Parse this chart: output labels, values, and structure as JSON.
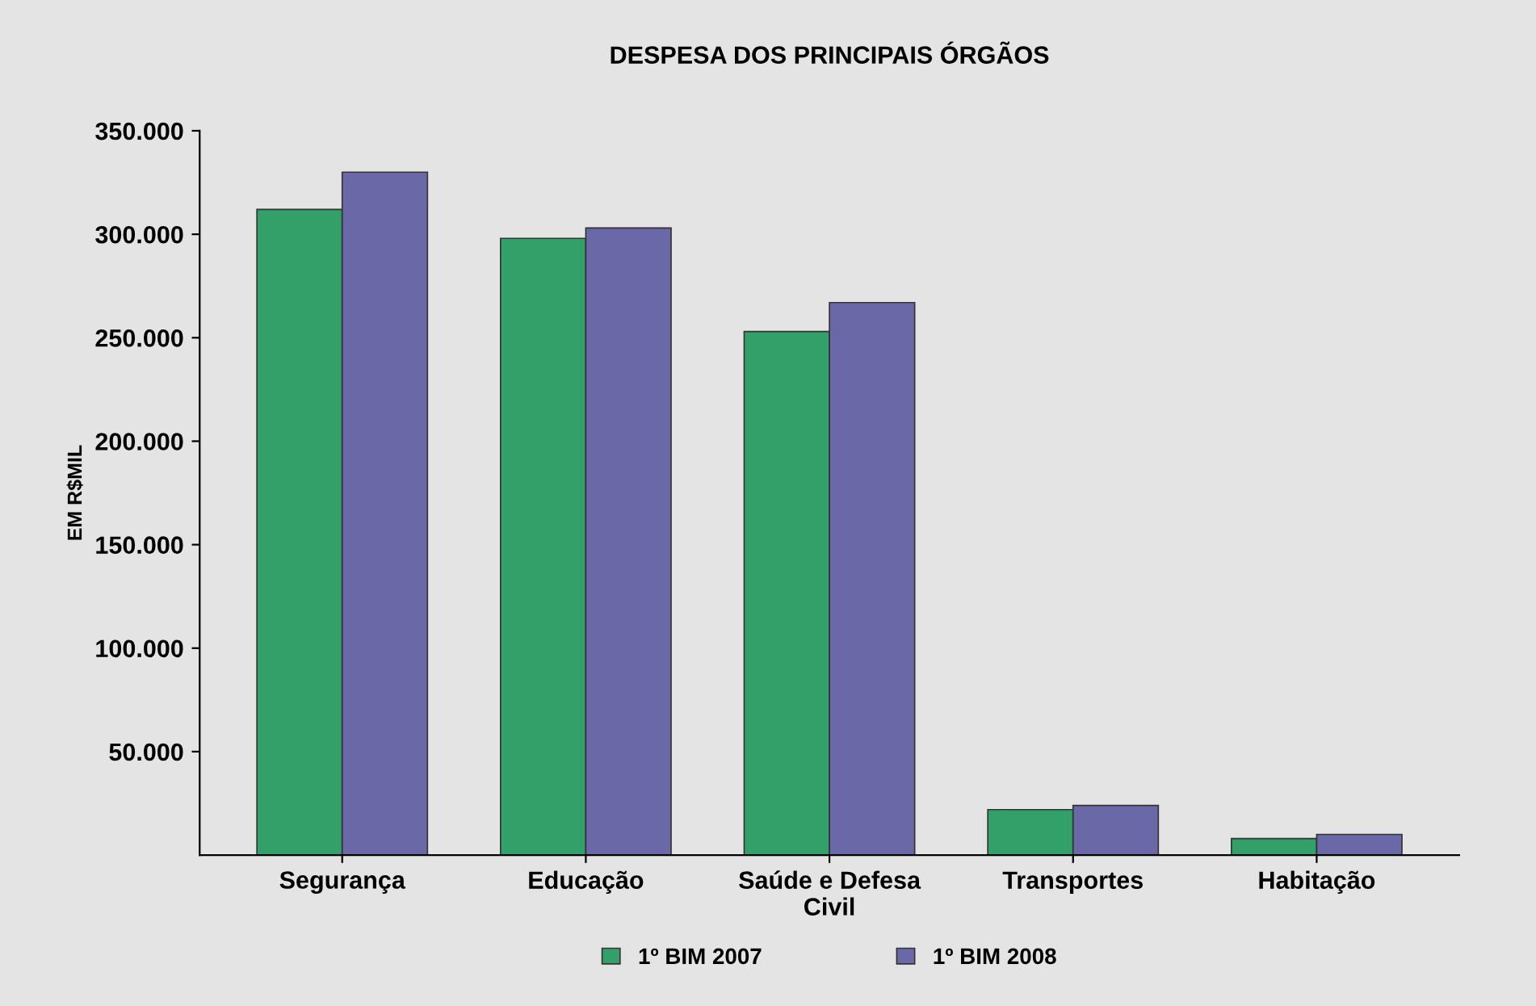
{
  "chart_data": {
    "type": "bar",
    "title": "DESPESA DOS PRINCIPAIS ÓRGÃOS",
    "ylabel": "EM R$MIL",
    "categories": [
      "Segurança",
      "Educação",
      "Saúde e Defesa\nCivil",
      "Transportes",
      "Habitação"
    ],
    "series": [
      {
        "name": "1º BIM 2007",
        "color": "#33a06a",
        "values": [
          312000,
          298000,
          253000,
          22000,
          8000
        ]
      },
      {
        "name": "1º BIM 2008",
        "color": "#6a68a6",
        "values": [
          330000,
          303000,
          267000,
          24000,
          10000
        ]
      }
    ],
    "ylim": [
      0,
      350000
    ],
    "yticks": [
      {
        "value": 50000,
        "label": "50.000"
      },
      {
        "value": 100000,
        "label": "100.000"
      },
      {
        "value": 150000,
        "label": "150.000"
      },
      {
        "value": 200000,
        "label": "200.000"
      },
      {
        "value": 250000,
        "label": "250.000"
      },
      {
        "value": 300000,
        "label": "300.000"
      },
      {
        "value": 350000,
        "label": "350.000"
      }
    ],
    "grid": false,
    "legend": "bottom"
  }
}
